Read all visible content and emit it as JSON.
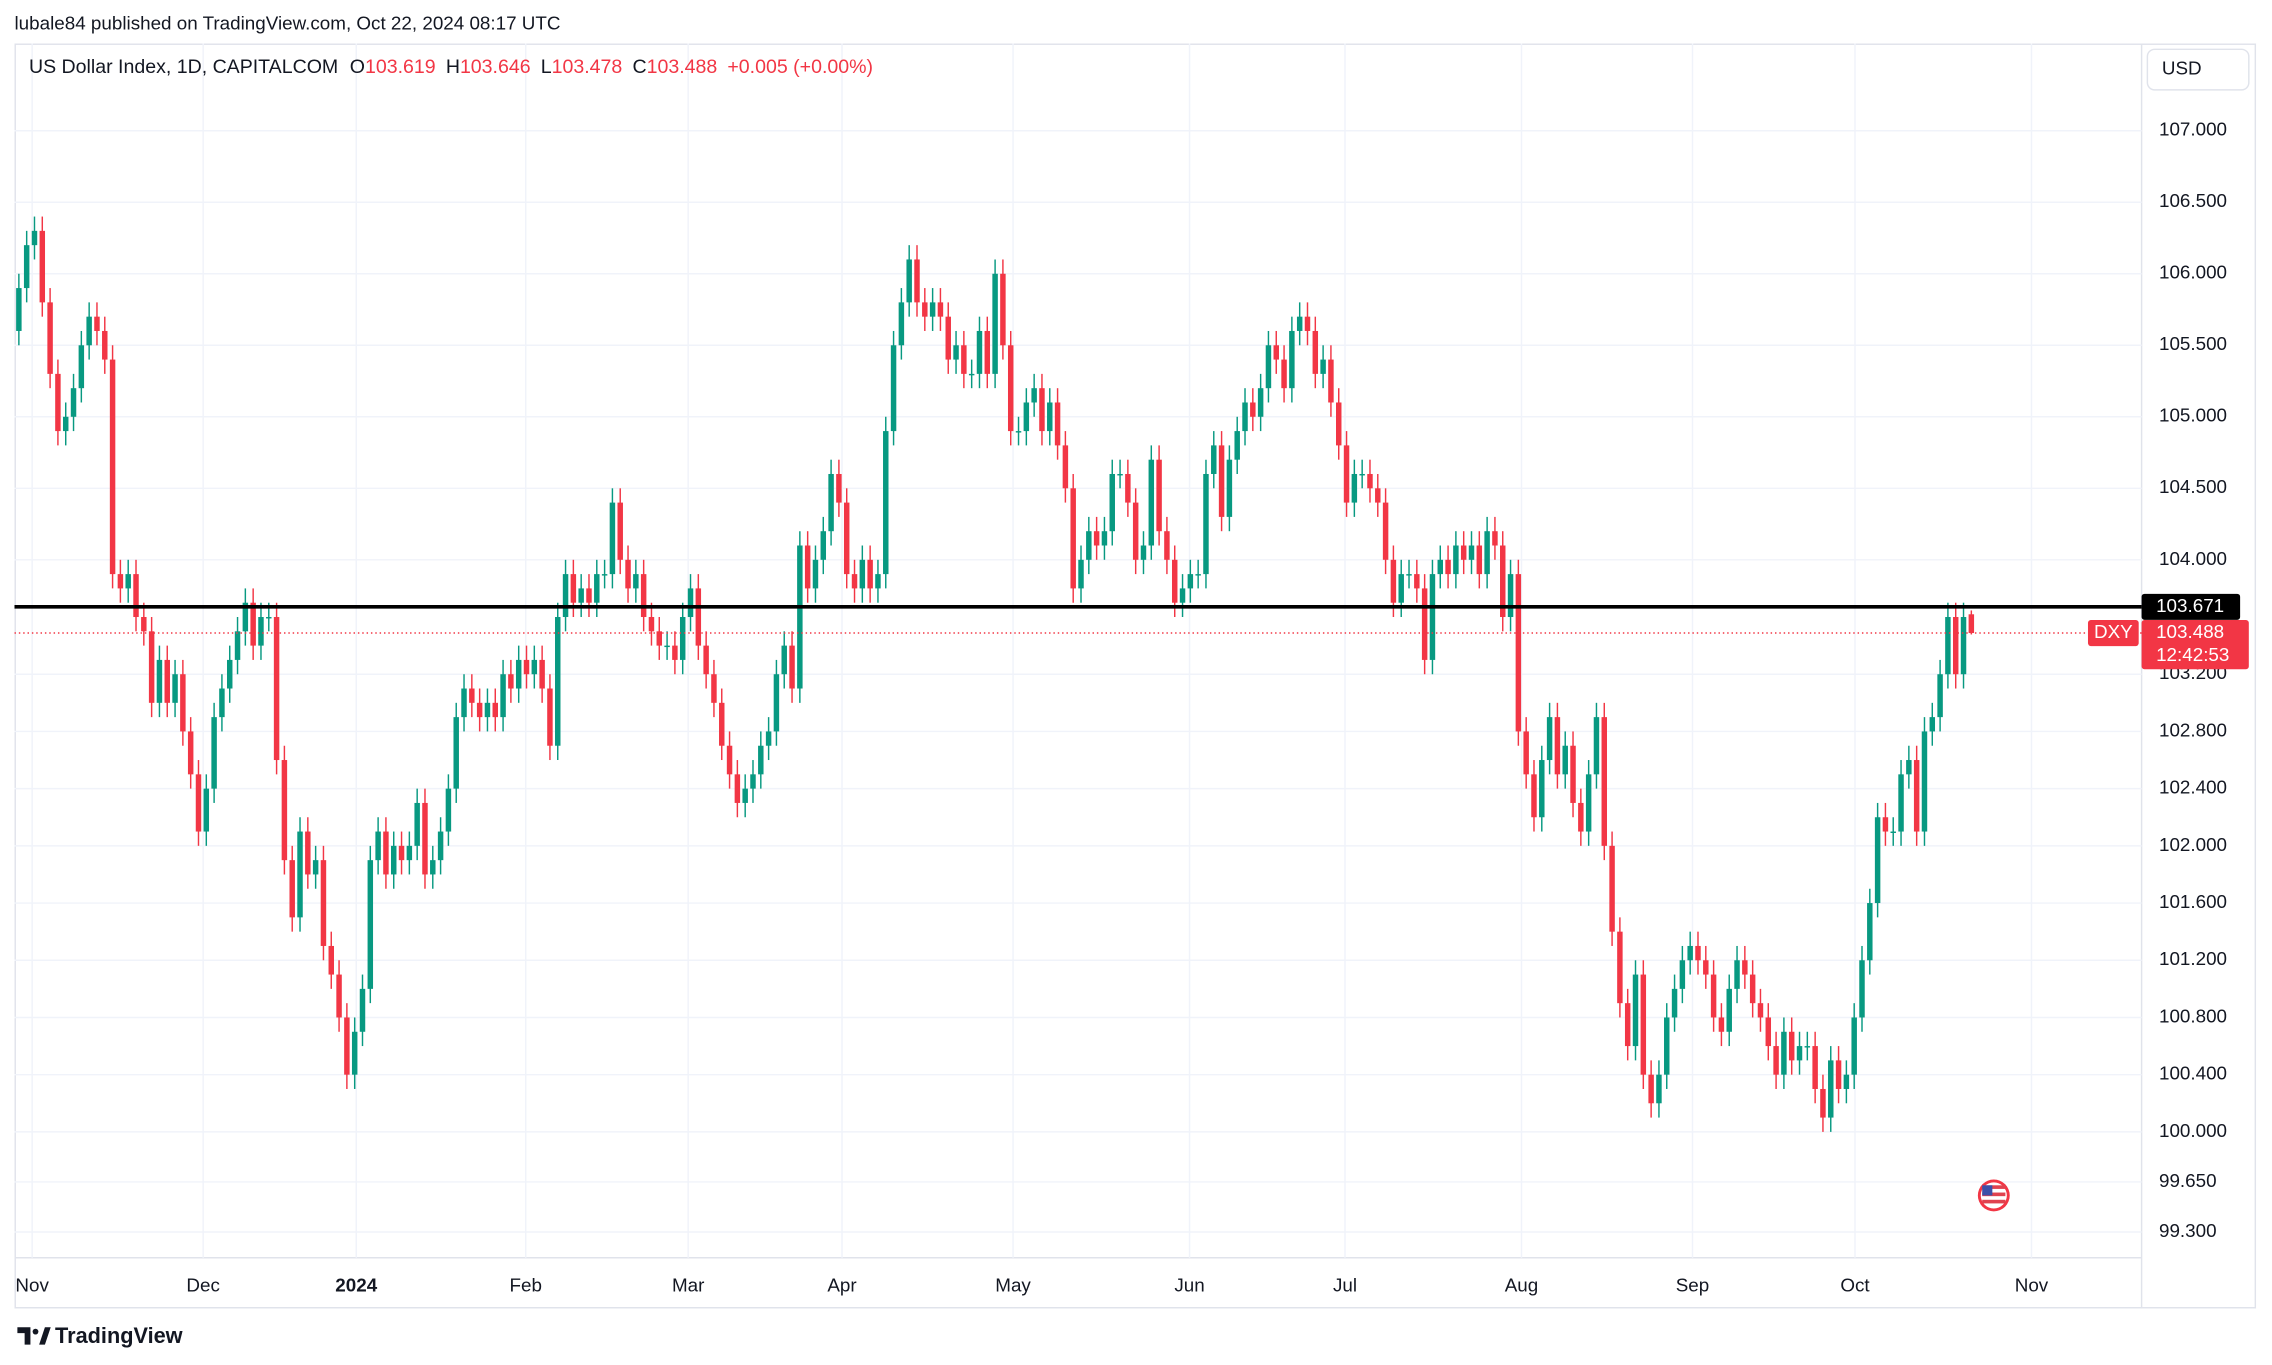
{
  "header": {
    "published": "lubale84 published on TradingView.com, Oct 22, 2024 08:17 UTC"
  },
  "chart_data": {
    "type": "candlestick",
    "title": "US Dollar Index, 1D, CAPITALCOM",
    "ohlc_labels": [
      "O",
      "H",
      "L",
      "C"
    ],
    "change": "+0.005 (+0.00%)",
    "currency": "USD",
    "symbol": "DXY",
    "countdown": "12:42:53",
    "up_color": "#089981",
    "down_color": "#f23645",
    "grid": true,
    "open": [
      105.6,
      105.9,
      106.2,
      106.3,
      105.8,
      105.3,
      104.9,
      105.0,
      105.2,
      105.5,
      105.7,
      105.6,
      105.4,
      103.9,
      103.8,
      103.9,
      103.6,
      103.5,
      103.0,
      103.3,
      103.0,
      103.2,
      102.8,
      102.5,
      102.1,
      102.4,
      102.9,
      103.1,
      103.3,
      103.5,
      103.7,
      103.4,
      103.6,
      103.6,
      102.6,
      101.9,
      101.5,
      102.1,
      101.8,
      101.9,
      101.3,
      101.1,
      100.8,
      100.4,
      100.7,
      101.0,
      101.9,
      102.1,
      101.8,
      102.0,
      101.9,
      102.0,
      102.3,
      101.8,
      101.9,
      102.1,
      102.4,
      102.9,
      103.1,
      103.0,
      102.9,
      103.0,
      102.9,
      103.2,
      103.1,
      103.3,
      103.2,
      103.3,
      103.1,
      102.7,
      103.6,
      103.9,
      103.7,
      103.8,
      103.7,
      103.9,
      103.9,
      104.4,
      104.0,
      103.8,
      103.9,
      103.6,
      103.5,
      103.4,
      103.4,
      103.3,
      103.6,
      103.8,
      103.4,
      103.2,
      103.0,
      102.7,
      102.5,
      102.3,
      102.4,
      102.5,
      102.7,
      102.8,
      103.2,
      103.4,
      103.1,
      104.1,
      103.8,
      104.0,
      104.2,
      104.6,
      104.4,
      103.9,
      103.8,
      104.0,
      103.8,
      103.9,
      104.9,
      105.5,
      105.8,
      106.1,
      105.8,
      105.7,
      105.8,
      105.7,
      105.4,
      105.5,
      105.3,
      105.3,
      105.6,
      105.3,
      106.0,
      105.5,
      104.9,
      104.9,
      105.1,
      105.2,
      104.9,
      105.1,
      104.8,
      104.5,
      103.8,
      104.0,
      104.2,
      104.1,
      104.2,
      104.6,
      104.6,
      104.4,
      104.0,
      104.1,
      104.7,
      104.2,
      104.0,
      103.7,
      103.8,
      103.9,
      103.9,
      104.6,
      104.8,
      104.3,
      104.7,
      104.9,
      105.1,
      105.0,
      105.2,
      105.5,
      105.4,
      105.2,
      105.6,
      105.7,
      105.6,
      105.3,
      105.4,
      105.1,
      104.8,
      104.4,
      104.6,
      104.6,
      104.5,
      104.4,
      104.0,
      103.7,
      103.9,
      103.9,
      103.8,
      103.3,
      103.9,
      104.0,
      103.9,
      104.1,
      104.0,
      104.1,
      103.9,
      104.2,
      104.1,
      103.6,
      103.9,
      102.8,
      102.5,
      102.2,
      102.6,
      102.9,
      102.5,
      102.7,
      102.3,
      102.1,
      102.5,
      102.9,
      102.0,
      101.4,
      100.9,
      100.6,
      101.1,
      100.4,
      100.2,
      100.4,
      100.8,
      101.0,
      101.2,
      101.3,
      101.2,
      101.1,
      100.8,
      100.7,
      101.0,
      101.2,
      101.1,
      100.9,
      100.8,
      100.6,
      100.4,
      100.7,
      100.5,
      100.6,
      100.6,
      100.3,
      100.1,
      100.5,
      100.3,
      100.4,
      100.8,
      101.2,
      101.6,
      102.2,
      102.1,
      102.1,
      102.5,
      102.6,
      102.1,
      102.8,
      102.9,
      103.2,
      103.6,
      103.2,
      103.619
    ],
    "high": [
      106.0,
      106.3,
      106.4,
      106.4,
      105.9,
      105.4,
      105.1,
      105.3,
      105.6,
      105.8,
      105.8,
      105.7,
      105.5,
      104.0,
      104.0,
      104.0,
      103.7,
      103.6,
      103.4,
      103.4,
      103.3,
      103.3,
      102.9,
      102.6,
      102.5,
      103.0,
      103.2,
      103.4,
      103.6,
      103.8,
      103.8,
      103.7,
      103.7,
      103.7,
      102.7,
      102.0,
      102.2,
      102.2,
      102.0,
      102.0,
      101.4,
      101.2,
      100.9,
      100.8,
      101.1,
      102.0,
      102.2,
      102.2,
      102.1,
      102.1,
      102.1,
      102.4,
      102.4,
      102.0,
      102.2,
      102.5,
      103.0,
      103.2,
      103.2,
      103.1,
      103.1,
      103.1,
      103.3,
      103.3,
      103.4,
      103.4,
      103.4,
      103.4,
      103.2,
      103.7,
      104.0,
      104.0,
      103.9,
      103.9,
      104.0,
      104.0,
      104.5,
      104.5,
      104.1,
      104.0,
      104.0,
      103.7,
      103.6,
      103.5,
      103.5,
      103.7,
      103.9,
      103.9,
      103.5,
      103.3,
      103.1,
      102.8,
      102.6,
      102.5,
      102.6,
      102.8,
      102.9,
      103.3,
      103.5,
      103.5,
      104.2,
      104.2,
      104.1,
      104.3,
      104.7,
      104.7,
      104.5,
      104.0,
      104.1,
      104.1,
      104.0,
      105.0,
      105.6,
      105.9,
      106.2,
      106.2,
      105.9,
      105.9,
      105.9,
      105.8,
      105.6,
      105.6,
      105.4,
      105.7,
      105.7,
      106.1,
      106.1,
      105.6,
      105.0,
      105.2,
      105.3,
      105.3,
      105.2,
      105.2,
      104.9,
      104.6,
      104.1,
      104.3,
      104.3,
      104.3,
      104.7,
      104.7,
      104.7,
      104.5,
      104.2,
      104.8,
      104.8,
      104.3,
      104.1,
      103.9,
      104.0,
      104.0,
      104.7,
      104.9,
      104.9,
      104.8,
      105.0,
      105.2,
      105.2,
      105.3,
      105.6,
      105.6,
      105.5,
      105.7,
      105.8,
      105.8,
      105.7,
      105.5,
      105.5,
      105.2,
      104.9,
      104.7,
      104.7,
      104.7,
      104.6,
      104.5,
      104.1,
      104.0,
      104.0,
      104.0,
      103.9,
      104.0,
      104.1,
      104.1,
      104.2,
      104.2,
      104.2,
      104.2,
      104.3,
      104.3,
      104.2,
      104.0,
      104.0,
      102.9,
      102.6,
      102.7,
      103.0,
      103.0,
      102.8,
      102.8,
      102.4,
      102.6,
      103.0,
      103.0,
      102.1,
      101.5,
      101.0,
      101.2,
      101.2,
      100.5,
      100.5,
      100.9,
      101.1,
      101.3,
      101.4,
      101.4,
      101.3,
      101.2,
      100.9,
      101.1,
      101.3,
      101.3,
      101.2,
      101.0,
      100.9,
      100.7,
      100.8,
      100.8,
      100.7,
      100.7,
      100.7,
      100.4,
      100.6,
      100.6,
      100.5,
      100.9,
      101.3,
      101.7,
      102.3,
      102.3,
      102.2,
      102.6,
      102.7,
      102.7,
      102.9,
      103.0,
      103.3,
      103.7,
      103.7,
      103.7,
      103.646
    ],
    "low": [
      105.5,
      105.8,
      106.1,
      105.7,
      105.2,
      104.8,
      104.8,
      104.9,
      105.1,
      105.4,
      105.5,
      105.3,
      103.8,
      103.7,
      103.7,
      103.5,
      103.4,
      102.9,
      102.9,
      102.9,
      102.9,
      102.7,
      102.4,
      102.0,
      102.0,
      102.3,
      102.8,
      103.0,
      103.2,
      103.4,
      103.3,
      103.3,
      103.5,
      102.5,
      101.8,
      101.4,
      101.4,
      101.7,
      101.7,
      101.2,
      101.0,
      100.7,
      100.3,
      100.3,
      100.6,
      100.9,
      101.8,
      101.7,
      101.7,
      101.8,
      101.8,
      101.9,
      101.7,
      101.7,
      101.8,
      102.0,
      102.3,
      102.8,
      102.9,
      102.8,
      102.8,
      102.8,
      102.8,
      103.0,
      103.0,
      103.1,
      103.1,
      103.0,
      102.6,
      102.6,
      103.5,
      103.6,
      103.6,
      103.6,
      103.6,
      103.8,
      103.8,
      103.9,
      103.7,
      103.7,
      103.5,
      103.4,
      103.3,
      103.3,
      103.2,
      103.2,
      103.5,
      103.3,
      103.1,
      102.9,
      102.6,
      102.4,
      102.2,
      102.2,
      102.3,
      102.4,
      102.6,
      102.7,
      103.1,
      103.0,
      103.0,
      103.7,
      103.7,
      103.9,
      104.1,
      104.3,
      103.8,
      103.7,
      103.7,
      103.7,
      103.7,
      103.8,
      104.8,
      105.4,
      105.7,
      105.7,
      105.6,
      105.6,
      105.6,
      105.3,
      105.3,
      105.2,
      105.2,
      105.2,
      105.2,
      105.2,
      105.4,
      104.8,
      104.8,
      104.8,
      105.0,
      104.8,
      104.8,
      104.7,
      104.4,
      103.7,
      103.7,
      103.9,
      104.0,
      104.0,
      104.1,
      104.5,
      104.3,
      103.9,
      103.9,
      104.0,
      104.1,
      103.9,
      103.6,
      103.6,
      103.7,
      103.8,
      103.8,
      104.5,
      104.2,
      104.2,
      104.6,
      104.8,
      104.9,
      104.9,
      105.1,
      105.3,
      105.1,
      105.1,
      105.5,
      105.5,
      105.2,
      105.2,
      105.0,
      104.7,
      104.3,
      104.3,
      104.5,
      104.4,
      104.3,
      103.9,
      103.6,
      103.6,
      103.8,
      103.7,
      103.2,
      103.2,
      103.8,
      103.8,
      103.8,
      103.9,
      103.9,
      103.8,
      103.8,
      104.0,
      103.5,
      103.5,
      102.7,
      102.4,
      102.1,
      102.1,
      102.5,
      102.4,
      102.4,
      102.2,
      102.0,
      102.0,
      102.4,
      101.9,
      101.3,
      100.8,
      100.5,
      100.5,
      100.3,
      100.1,
      100.1,
      100.3,
      100.7,
      100.9,
      101.1,
      101.1,
      101.0,
      100.7,
      100.6,
      100.6,
      100.9,
      101.0,
      100.8,
      100.7,
      100.5,
      100.3,
      100.3,
      100.4,
      100.4,
      100.5,
      100.2,
      100.0,
      100.0,
      100.2,
      100.2,
      100.3,
      100.7,
      101.1,
      101.5,
      102.0,
      102.0,
      102.0,
      102.4,
      102.0,
      102.0,
      102.7,
      102.8,
      103.1,
      103.1,
      103.1,
      103.478
    ],
    "close": [
      105.9,
      106.2,
      106.3,
      105.8,
      105.3,
      104.9,
      105.0,
      105.2,
      105.5,
      105.7,
      105.6,
      105.4,
      103.9,
      103.8,
      103.9,
      103.6,
      103.5,
      103.0,
      103.3,
      103.0,
      103.2,
      102.8,
      102.5,
      102.1,
      102.4,
      102.9,
      103.1,
      103.3,
      103.5,
      103.7,
      103.4,
      103.6,
      103.6,
      102.6,
      101.9,
      101.5,
      102.1,
      101.8,
      101.9,
      101.3,
      101.1,
      100.8,
      100.4,
      100.7,
      101.0,
      101.9,
      102.1,
      101.8,
      102.0,
      101.9,
      102.0,
      102.3,
      101.8,
      101.9,
      102.1,
      102.4,
      102.9,
      103.1,
      103.0,
      102.9,
      103.0,
      102.9,
      103.2,
      103.1,
      103.3,
      103.2,
      103.3,
      103.1,
      102.7,
      103.6,
      103.9,
      103.7,
      103.8,
      103.7,
      103.9,
      103.9,
      104.4,
      104.0,
      103.8,
      103.9,
      103.6,
      103.5,
      103.4,
      103.4,
      103.3,
      103.6,
      103.8,
      103.4,
      103.2,
      103.0,
      102.7,
      102.5,
      102.3,
      102.4,
      102.5,
      102.7,
      102.8,
      103.2,
      103.4,
      103.1,
      104.1,
      103.8,
      104.0,
      104.2,
      104.6,
      104.4,
      103.9,
      103.8,
      104.0,
      103.8,
      103.9,
      104.9,
      105.5,
      105.8,
      106.1,
      105.8,
      105.7,
      105.8,
      105.7,
      105.4,
      105.5,
      105.3,
      105.3,
      105.6,
      105.3,
      106.0,
      105.5,
      104.9,
      104.9,
      105.1,
      105.2,
      104.9,
      105.1,
      104.8,
      104.5,
      103.8,
      104.0,
      104.2,
      104.1,
      104.2,
      104.6,
      104.6,
      104.4,
      104.0,
      104.1,
      104.7,
      104.2,
      104.0,
      103.7,
      103.8,
      103.9,
      103.9,
      104.6,
      104.8,
      104.3,
      104.7,
      104.9,
      105.1,
      105.0,
      105.2,
      105.5,
      105.4,
      105.2,
      105.6,
      105.7,
      105.6,
      105.3,
      105.4,
      105.1,
      104.8,
      104.4,
      104.6,
      104.6,
      104.5,
      104.4,
      104.0,
      103.7,
      103.9,
      103.9,
      103.8,
      103.3,
      103.9,
      104.0,
      103.9,
      104.1,
      104.0,
      104.1,
      103.9,
      104.2,
      104.1,
      103.6,
      103.9,
      102.8,
      102.5,
      102.2,
      102.6,
      102.9,
      102.5,
      102.7,
      102.3,
      102.1,
      102.5,
      102.9,
      102.0,
      101.4,
      100.9,
      100.6,
      101.1,
      100.4,
      100.2,
      100.4,
      100.8,
      101.0,
      101.2,
      101.3,
      101.2,
      101.1,
      100.8,
      100.7,
      101.0,
      101.2,
      101.1,
      100.9,
      100.8,
      100.6,
      100.4,
      100.7,
      100.5,
      100.6,
      100.6,
      100.3,
      100.1,
      100.5,
      100.3,
      100.4,
      100.8,
      101.2,
      101.6,
      102.2,
      102.1,
      102.1,
      102.5,
      102.6,
      102.1,
      102.8,
      102.9,
      103.2,
      103.6,
      103.2,
      103.6,
      103.488
    ],
    "xlim": [
      -0.56,
      271.8
    ],
    "xticks": [
      {
        "value": 1.7,
        "label": "Nov"
      },
      {
        "value": 23.6,
        "label": "Dec"
      },
      {
        "value": 43.2,
        "label": "2024"
      },
      {
        "value": 64.9,
        "label": "Feb"
      },
      {
        "value": 85.7,
        "label": "Mar"
      },
      {
        "value": 105.4,
        "label": "Apr"
      },
      {
        "value": 127.3,
        "label": "May"
      },
      {
        "value": 149.9,
        "label": "Jun"
      },
      {
        "value": 169.8,
        "label": "Jul"
      },
      {
        "value": 192.4,
        "label": "Aug"
      },
      {
        "value": 214.3,
        "label": "Sep"
      },
      {
        "value": 235.1,
        "label": "Oct"
      },
      {
        "value": 257.7,
        "label": "Nov"
      }
    ],
    "ylim": [
      99.12,
      107.61
    ],
    "yticks": [
      {
        "value": 107,
        "label": "107.000"
      },
      {
        "value": 106.5,
        "label": "106.500"
      },
      {
        "value": 106,
        "label": "106.000"
      },
      {
        "value": 105.5,
        "label": "105.500"
      },
      {
        "value": 105,
        "label": "105.000"
      },
      {
        "value": 104.5,
        "label": "104.500"
      },
      {
        "value": 104,
        "label": "104.000"
      },
      {
        "value": 103.2,
        "label": "103.200"
      },
      {
        "value": 102.8,
        "label": "102.800"
      },
      {
        "value": 102.4,
        "label": "102.400"
      },
      {
        "value": 102,
        "label": "102.000"
      },
      {
        "value": 101.6,
        "label": "101.600"
      },
      {
        "value": 101.2,
        "label": "101.200"
      },
      {
        "value": 100.8,
        "label": "100.800"
      },
      {
        "value": 100.4,
        "label": "100.400"
      },
      {
        "value": 100,
        "label": "100.000"
      },
      {
        "value": 99.65,
        "label": "99.650"
      },
      {
        "value": 99.3,
        "label": "99.300"
      }
    ],
    "hline": {
      "value": 103.671,
      "color": "#000000"
    }
  },
  "footer": {
    "brand": "TradingView"
  }
}
